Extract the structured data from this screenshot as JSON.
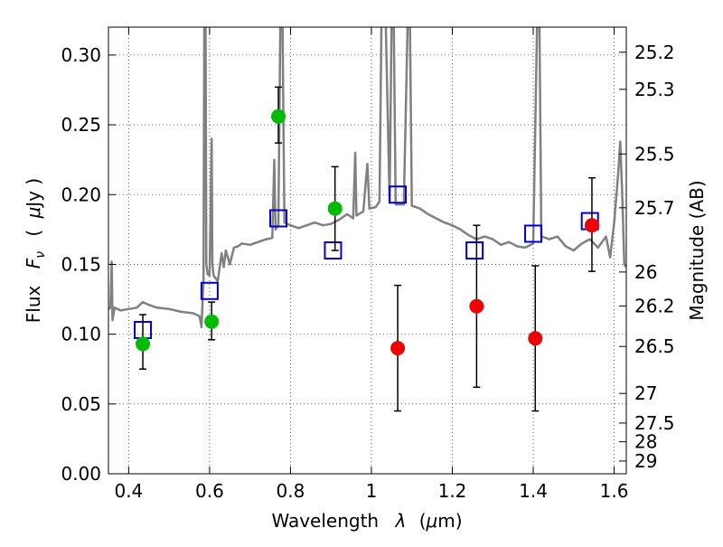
{
  "chart_data": {
    "type": "scatter",
    "xlabel": "Wavelength",
    "xlabel_symbol": "λ",
    "xlabel_unit_open": "(",
    "xlabel_unit_mu": "μ",
    "xlabel_unit_rest": "m)",
    "ylabel": "Flux",
    "ylabel_symbol": "F",
    "ylabel_subscript": "ν",
    "ylabel_unit_open": "(",
    "ylabel_unit_mu": "μ",
    "ylabel_unit_rest": "Jy )",
    "y2label": "Magnitude (AB)",
    "xlim": [
      0.35,
      1.63
    ],
    "ylim": [
      0.0,
      0.32
    ],
    "grid": true,
    "x_ticks": [
      {
        "value": 0.4,
        "label": "0.4"
      },
      {
        "value": 0.6,
        "label": "0.6"
      },
      {
        "value": 0.8,
        "label": "0.8"
      },
      {
        "value": 1.0,
        "label": "1"
      },
      {
        "value": 1.2,
        "label": "1.2"
      },
      {
        "value": 1.4,
        "label": "1.4"
      },
      {
        "value": 1.6,
        "label": "1.6"
      }
    ],
    "y_ticks": [
      {
        "value": 0.0,
        "label": "0.00"
      },
      {
        "value": 0.05,
        "label": "0.05"
      },
      {
        "value": 0.1,
        "label": "0.10"
      },
      {
        "value": 0.15,
        "label": "0.15"
      },
      {
        "value": 0.2,
        "label": "0.20"
      },
      {
        "value": 0.25,
        "label": "0.25"
      },
      {
        "value": 0.3,
        "label": "0.30"
      }
    ],
    "y2_ticks": [
      {
        "value": 25.2,
        "label": "25.2"
      },
      {
        "value": 25.3,
        "label": "25.3"
      },
      {
        "value": 25.5,
        "label": "25.5"
      },
      {
        "value": 25.7,
        "label": "25.7"
      },
      {
        "value": 26.0,
        "label": "26"
      },
      {
        "value": 26.2,
        "label": "26.2"
      },
      {
        "value": 26.5,
        "label": "26.5"
      },
      {
        "value": 27.0,
        "label": "27"
      },
      {
        "value": 27.5,
        "label": "27.5"
      },
      {
        "value": 28.0,
        "label": "28"
      },
      {
        "value": 29.0,
        "label": "29"
      }
    ],
    "series": [
      {
        "style": "line",
        "color": "#808080",
        "points": [
          [
            0.35,
            0.118
          ],
          [
            0.355,
            0.119
          ],
          [
            0.358,
            0.152
          ],
          [
            0.36,
            0.11
          ],
          [
            0.365,
            0.119
          ],
          [
            0.38,
            0.117
          ],
          [
            0.4,
            0.118
          ],
          [
            0.42,
            0.119
          ],
          [
            0.435,
            0.123
          ],
          [
            0.45,
            0.121
          ],
          [
            0.47,
            0.119
          ],
          [
            0.5,
            0.118
          ],
          [
            0.53,
            0.116
          ],
          [
            0.56,
            0.115
          ],
          [
            0.575,
            0.113
          ],
          [
            0.58,
            0.105
          ],
          [
            0.585,
            0.14
          ],
          [
            0.587,
            0.33
          ],
          [
            0.59,
            0.33
          ],
          [
            0.592,
            0.15
          ],
          [
            0.595,
            0.143
          ],
          [
            0.6,
            0.142
          ],
          [
            0.605,
            0.24
          ],
          [
            0.607,
            0.15
          ],
          [
            0.61,
            0.142
          ],
          [
            0.62,
            0.138
          ],
          [
            0.63,
            0.158
          ],
          [
            0.635,
            0.148
          ],
          [
            0.64,
            0.16
          ],
          [
            0.65,
            0.15
          ],
          [
            0.66,
            0.162
          ],
          [
            0.67,
            0.163
          ],
          [
            0.68,
            0.165
          ],
          [
            0.7,
            0.164
          ],
          [
            0.72,
            0.166
          ],
          [
            0.74,
            0.168
          ],
          [
            0.755,
            0.169
          ],
          [
            0.76,
            0.225
          ],
          [
            0.763,
            0.175
          ],
          [
            0.77,
            0.178
          ],
          [
            0.775,
            0.33
          ],
          [
            0.78,
            0.33
          ],
          [
            0.785,
            0.18
          ],
          [
            0.8,
            0.178
          ],
          [
            0.82,
            0.176
          ],
          [
            0.84,
            0.178
          ],
          [
            0.86,
            0.18
          ],
          [
            0.88,
            0.178
          ],
          [
            0.9,
            0.179
          ],
          [
            0.92,
            0.182
          ],
          [
            0.94,
            0.186
          ],
          [
            0.955,
            0.183
          ],
          [
            0.96,
            0.23
          ],
          [
            0.963,
            0.185
          ],
          [
            0.98,
            0.188
          ],
          [
            0.99,
            0.222
          ],
          [
            0.995,
            0.19
          ],
          [
            1.01,
            0.191
          ],
          [
            1.02,
            0.195
          ],
          [
            1.025,
            0.33
          ],
          [
            1.035,
            0.33
          ],
          [
            1.045,
            0.195
          ],
          [
            1.05,
            0.33
          ],
          [
            1.055,
            0.33
          ],
          [
            1.06,
            0.193
          ],
          [
            1.08,
            0.193
          ],
          [
            1.09,
            0.33
          ],
          [
            1.095,
            0.33
          ],
          [
            1.1,
            0.192
          ],
          [
            1.12,
            0.19
          ],
          [
            1.14,
            0.186
          ],
          [
            1.16,
            0.183
          ],
          [
            1.18,
            0.18
          ],
          [
            1.2,
            0.178
          ],
          [
            1.22,
            0.175
          ],
          [
            1.24,
            0.171
          ],
          [
            1.26,
            0.168
          ],
          [
            1.28,
            0.17
          ],
          [
            1.3,
            0.168
          ],
          [
            1.32,
            0.164
          ],
          [
            1.34,
            0.166
          ],
          [
            1.36,
            0.163
          ],
          [
            1.38,
            0.162
          ],
          [
            1.4,
            0.165
          ],
          [
            1.41,
            0.33
          ],
          [
            1.415,
            0.33
          ],
          [
            1.42,
            0.17
          ],
          [
            1.44,
            0.168
          ],
          [
            1.46,
            0.17
          ],
          [
            1.48,
            0.163
          ],
          [
            1.5,
            0.16
          ],
          [
            1.52,
            0.165
          ],
          [
            1.54,
            0.168
          ],
          [
            1.56,
            0.162
          ],
          [
            1.58,
            0.17
          ],
          [
            1.59,
            0.155
          ],
          [
            1.6,
            0.18
          ],
          [
            1.61,
            0.215
          ],
          [
            1.615,
            0.238
          ],
          [
            1.62,
            0.2
          ],
          [
            1.625,
            0.15
          ],
          [
            1.63,
            0.148
          ]
        ]
      },
      {
        "style": "open-square",
        "color": "#0000cc",
        "points": [
          [
            0.435,
            0.103
          ],
          [
            0.6,
            0.131
          ],
          [
            0.77,
            0.183
          ],
          [
            0.905,
            0.16
          ],
          [
            1.065,
            0.2
          ],
          [
            1.255,
            0.16
          ],
          [
            1.4,
            0.172
          ],
          [
            1.54,
            0.181
          ]
        ]
      },
      {
        "style": "filled-circle",
        "color": "#00bb00",
        "points": [
          {
            "x": 0.435,
            "y": 0.093,
            "err": [
              0.075,
              0.114
            ]
          },
          {
            "x": 0.605,
            "y": 0.109,
            "err": [
              0.096,
              0.123
            ]
          },
          {
            "x": 0.77,
            "y": 0.256,
            "err": [
              0.237,
              0.277
            ]
          },
          {
            "x": 0.91,
            "y": 0.19,
            "err": [
              0.16,
              0.22
            ]
          }
        ]
      },
      {
        "style": "filled-circle",
        "color": "#ee0000",
        "points": [
          {
            "x": 1.065,
            "y": 0.09,
            "err": [
              0.045,
              0.135
            ]
          },
          {
            "x": 1.26,
            "y": 0.12,
            "err": [
              0.062,
              0.178
            ]
          },
          {
            "x": 1.405,
            "y": 0.097,
            "err": [
              0.045,
              0.149
            ]
          },
          {
            "x": 1.545,
            "y": 0.178,
            "err": [
              0.145,
              0.212
            ]
          }
        ]
      }
    ]
  }
}
